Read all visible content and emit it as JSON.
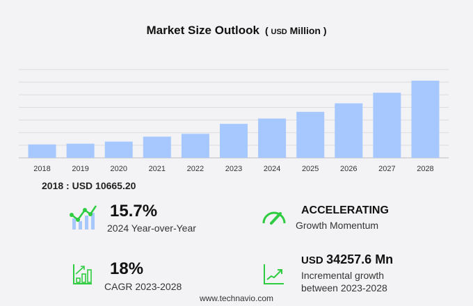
{
  "title": "Market Size Outlook",
  "unit_prefix": "( ",
  "unit_currency": "USD",
  "unit_label": "Million",
  "unit_suffix": " )",
  "base_value": "2018 : USD  10665.20",
  "kpis": {
    "yoy": {
      "value": "15.7%",
      "label": "2024 Year-over-Year"
    },
    "momentum": {
      "value": "ACCELERATING",
      "label": "Growth Momentum"
    },
    "cagr": {
      "value": "18%",
      "label": "CAGR 2023-2028"
    },
    "incremental": {
      "currency": "USD",
      "value": "34257.6 Mn",
      "label1": "Incremental growth",
      "label2": "between 2023-2028"
    }
  },
  "footer": "www.technavio.com",
  "colors": {
    "bar": "#a6c8ff",
    "icon_green": "#2ecc40",
    "grid": "#dcdce0"
  },
  "chart_data": {
    "type": "bar",
    "title": "Market Size Outlook",
    "categories": [
      "2018",
      "2019",
      "2020",
      "2021",
      "2022",
      "2023",
      "2024",
      "2025",
      "2026",
      "2027",
      "2028"
    ],
    "values": [
      10665.2,
      11230,
      12900,
      16840,
      19090,
      26950,
      31180,
      36480,
      43220,
      51640,
      61207.6
    ],
    "ylim": [
      0,
      70000
    ],
    "ytick_step": 10000,
    "grid": true,
    "ytick_labels_shown": false
  }
}
